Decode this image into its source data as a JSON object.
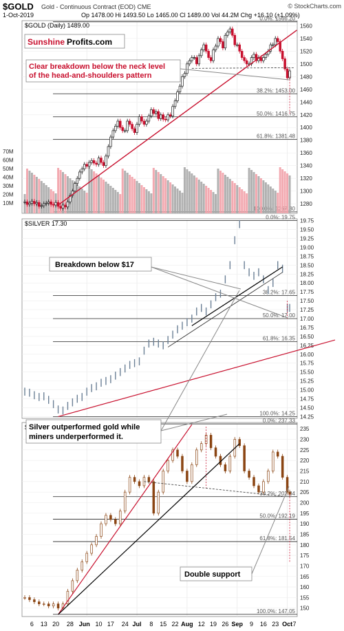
{
  "header": {
    "symbol": "$GOLD",
    "description": "Gold - Continuous Contract (EOD) CME",
    "watermark": "© StockCharts.com",
    "date": "1-Oct-2019",
    "ohlc": "Op 1478.00  Hi 1493.50  Lo 1465.00  Cl 1489.00  Vol 44.2M  Chg +16.10 (+1.09%)"
  },
  "brand": {
    "part1": "Sunshine",
    "part2": "Profits.com"
  },
  "annotations": {
    "gold": "Clear breakdown below the neck level\nof the head-and-shoulders pattern",
    "silver": "Breakdown below $17",
    "hui": "Silver outperformed gold while\nminers underperformed it.",
    "support": "Double support"
  },
  "x_axis": {
    "labels": [
      "6",
      "13",
      "20",
      "28",
      "Jun",
      "10",
      "17",
      "24",
      "Jul",
      "8",
      "15",
      "22",
      "Aug",
      "12",
      "19",
      "26",
      "Sep",
      "9",
      "16",
      "23",
      "Oct",
      "7"
    ]
  },
  "chart_data": [
    {
      "type": "candlestick",
      "title": "$GOLD (Daily) 1489.00",
      "y_ticks": [
        1280,
        1300,
        1320,
        1340,
        1360,
        1380,
        1400,
        1420,
        1440,
        1460,
        1480,
        1500,
        1520,
        1540,
        1560
      ],
      "ylim": [
        1265,
        1568
      ],
      "volume_ticks": [
        "10M",
        "20M",
        "30M",
        "40M",
        "50M",
        "60M",
        "70M"
      ],
      "fib_levels": [
        {
          "label": "0.0%: 1566.20",
          "value": 1566.2
        },
        {
          "label": "38.2%: 1453.00",
          "value": 1453
        },
        {
          "label": "50.0%: 1416.75",
          "value": 1416.75
        },
        {
          "label": "61.8%: 1381.48",
          "value": 1381.48
        },
        {
          "label": "100.0%: 1267.30",
          "value": 1267.3
        }
      ],
      "close_points": [
        [
          0,
          1283
        ],
        [
          1,
          1279
        ],
        [
          2,
          1281
        ],
        [
          3,
          1284
        ],
        [
          4,
          1280
        ],
        [
          5,
          1282
        ],
        [
          6,
          1276
        ],
        [
          7,
          1277
        ],
        [
          8,
          1280
        ],
        [
          9,
          1281
        ],
        [
          10,
          1283
        ],
        [
          11,
          1279
        ],
        [
          12,
          1278
        ],
        [
          13,
          1282
        ],
        [
          14,
          1276
        ],
        [
          15,
          1273
        ],
        [
          16,
          1278
        ],
        [
          17,
          1275
        ],
        [
          18,
          1283
        ],
        [
          19,
          1293
        ],
        [
          20,
          1300
        ],
        [
          21,
          1312
        ],
        [
          22,
          1320
        ],
        [
          23,
          1330
        ],
        [
          24,
          1335
        ],
        [
          25,
          1342
        ],
        [
          26,
          1339
        ],
        [
          27,
          1345
        ],
        [
          28,
          1348
        ],
        [
          29,
          1344
        ],
        [
          30,
          1342
        ],
        [
          31,
          1352
        ],
        [
          32,
          1345
        ],
        [
          33,
          1340
        ],
        [
          34,
          1355
        ],
        [
          35,
          1370
        ],
        [
          36,
          1385
        ],
        [
          37,
          1395
        ],
        [
          38,
          1402
        ],
        [
          39,
          1410
        ],
        [
          40,
          1400
        ],
        [
          41,
          1395
        ],
        [
          42,
          1395
        ],
        [
          43,
          1410
        ],
        [
          44,
          1405
        ],
        [
          45,
          1398
        ],
        [
          46,
          1392
        ],
        [
          47,
          1405
        ],
        [
          48,
          1417
        ],
        [
          49,
          1410
        ],
        [
          50,
          1405
        ],
        [
          51,
          1410
        ],
        [
          52,
          1418
        ],
        [
          53,
          1428
        ],
        [
          54,
          1422
        ],
        [
          55,
          1425
        ],
        [
          56,
          1414
        ],
        [
          57,
          1420
        ],
        [
          58,
          1413
        ],
        [
          59,
          1412
        ],
        [
          60,
          1420
        ],
        [
          61,
          1418
        ],
        [
          62,
          1433
        ],
        [
          63,
          1442
        ],
        [
          64,
          1456
        ],
        [
          65,
          1465
        ],
        [
          66,
          1480
        ],
        [
          67,
          1485
        ],
        [
          68,
          1500
        ],
        [
          69,
          1505
        ],
        [
          70,
          1510
        ],
        [
          71,
          1510
        ],
        [
          72,
          1500
        ],
        [
          73,
          1513
        ],
        [
          74,
          1522
        ],
        [
          75,
          1530
        ],
        [
          76,
          1520
        ],
        [
          77,
          1510
        ],
        [
          78,
          1505
        ],
        [
          79,
          1522
        ],
        [
          80,
          1528
        ],
        [
          81,
          1540
        ],
        [
          82,
          1535
        ],
        [
          83,
          1525
        ],
        [
          84,
          1545
        ],
        [
          85,
          1550
        ],
        [
          86,
          1555
        ],
        [
          87,
          1545
        ],
        [
          88,
          1530
        ],
        [
          89,
          1530
        ],
        [
          90,
          1520
        ],
        [
          91,
          1510
        ],
        [
          92,
          1505
        ],
        [
          93,
          1500
        ],
        [
          94,
          1500
        ],
        [
          95,
          1510
        ],
        [
          96,
          1515
        ],
        [
          97,
          1505
        ],
        [
          98,
          1510
        ],
        [
          99,
          1505
        ],
        [
          100,
          1510
        ],
        [
          101,
          1515
        ],
        [
          102,
          1520
        ],
        [
          103,
          1530
        ],
        [
          104,
          1530
        ],
        [
          105,
          1540
        ],
        [
          106,
          1535
        ],
        [
          107,
          1520
        ],
        [
          108,
          1508
        ],
        [
          109,
          1492
        ],
        [
          110,
          1478
        ],
        [
          111,
          1489
        ]
      ],
      "neckline": [
        [
          70,
          1493
        ],
        [
          113,
          1494
        ]
      ],
      "trendline": [
        [
          14,
          1278
        ],
        [
          114,
          1553
        ]
      ]
    },
    {
      "type": "line",
      "title": "$SILVER 17.30",
      "y_ticks": [
        14.25,
        14.5,
        14.75,
        15.0,
        15.25,
        15.5,
        15.75,
        16.0,
        16.25,
        16.5,
        16.75,
        17.0,
        17.25,
        17.5,
        17.75,
        18.0,
        18.25,
        18.5,
        18.75,
        19.0,
        19.25,
        19.5,
        19.75
      ],
      "ylim": [
        14.2,
        19.8
      ],
      "fib_levels": [
        {
          "label": "0.0%: 19.75",
          "value": 19.75
        },
        {
          "label": "38.2%: 17.65",
          "value": 17.65
        },
        {
          "label": "50.0%: 17.00",
          "value": 17.0
        },
        {
          "label": "61.8%: 16.35",
          "value": 16.35
        },
        {
          "label": "100.0%: 14.25",
          "value": 14.25
        }
      ],
      "close_points": [
        [
          0,
          14.95
        ],
        [
          2,
          14.92
        ],
        [
          4,
          14.85
        ],
        [
          6,
          14.8
        ],
        [
          8,
          14.82
        ],
        [
          10,
          14.72
        ],
        [
          12,
          14.6
        ],
        [
          14,
          14.45
        ],
        [
          16,
          14.42
        ],
        [
          18,
          14.55
        ],
        [
          20,
          14.65
        ],
        [
          22,
          14.75
        ],
        [
          24,
          14.8
        ],
        [
          26,
          14.95
        ],
        [
          28,
          15.05
        ],
        [
          30,
          15.1
        ],
        [
          32,
          15.2
        ],
        [
          34,
          15.25
        ],
        [
          36,
          15.3
        ],
        [
          38,
          15.4
        ],
        [
          40,
          15.5
        ],
        [
          42,
          15.6
        ],
        [
          44,
          15.7
        ],
        [
          46,
          15.75
        ],
        [
          48,
          15.8
        ],
        [
          50,
          16.1
        ],
        [
          52,
          16.3
        ],
        [
          54,
          16.35
        ],
        [
          56,
          16.3
        ],
        [
          58,
          16.25
        ],
        [
          60,
          16.4
        ],
        [
          62,
          16.55
        ],
        [
          64,
          16.7
        ],
        [
          66,
          16.8
        ],
        [
          68,
          16.9
        ],
        [
          70,
          17.0
        ],
        [
          72,
          17.2
        ],
        [
          74,
          17.3
        ],
        [
          76,
          17.2
        ],
        [
          78,
          17.4
        ],
        [
          80,
          17.6
        ],
        [
          82,
          17.7
        ],
        [
          84,
          18.1
        ],
        [
          86,
          18.5
        ],
        [
          88,
          19.2
        ],
        [
          90,
          19.65
        ],
        [
          92,
          18.5
        ],
        [
          94,
          18.3
        ],
        [
          96,
          18.2
        ],
        [
          98,
          18.3
        ],
        [
          100,
          18.1
        ],
        [
          102,
          17.8
        ],
        [
          104,
          18.0
        ],
        [
          106,
          18.5
        ],
        [
          108,
          18.4
        ],
        [
          110,
          17.3
        ],
        [
          111,
          17.3
        ]
      ],
      "trendlines": [
        {
          "from": [
            70,
            16.8
          ],
          "to": [
            108,
            18.45
          ],
          "color": "#000000"
        },
        {
          "from": [
            14,
            14.25
          ],
          "to": [
            130,
            16.4
          ],
          "color": "#c8102e"
        }
      ],
      "ma_line": [
        [
          60,
          16.2
        ],
        [
          108,
          18.3
        ]
      ]
    },
    {
      "type": "candlestick",
      "title": "$HUI 204.29",
      "y_ticks": [
        150,
        155,
        160,
        165,
        170,
        175,
        180,
        185,
        190,
        195,
        200,
        205,
        210,
        215,
        220,
        225,
        230,
        235
      ],
      "ylim": [
        146,
        238
      ],
      "fib_levels": [
        {
          "label": "0.0%: 237.33",
          "value": 237.33
        },
        {
          "label": "38.2%: 202.84",
          "value": 202.84
        },
        {
          "label": "50.0%: 192.19",
          "value": 192.19
        },
        {
          "label": "61.8%: 181.54",
          "value": 181.54
        },
        {
          "label": "100.0%: 147.05",
          "value": 147.05
        }
      ],
      "close_points": [
        [
          0,
          155
        ],
        [
          2,
          154
        ],
        [
          4,
          153
        ],
        [
          6,
          152
        ],
        [
          8,
          152
        ],
        [
          10,
          151
        ],
        [
          12,
          152
        ],
        [
          14,
          150
        ],
        [
          16,
          152
        ],
        [
          18,
          158
        ],
        [
          20,
          163
        ],
        [
          22,
          168
        ],
        [
          24,
          172
        ],
        [
          26,
          176
        ],
        [
          28,
          180
        ],
        [
          30,
          184
        ],
        [
          32,
          190
        ],
        [
          34,
          194
        ],
        [
          36,
          192
        ],
        [
          38,
          190
        ],
        [
          40,
          196
        ],
        [
          42,
          205
        ],
        [
          44,
          212
        ],
        [
          46,
          210
        ],
        [
          48,
          208
        ],
        [
          50,
          212
        ],
        [
          52,
          210
        ],
        [
          54,
          195
        ],
        [
          56,
          205
        ],
        [
          58,
          215
        ],
        [
          60,
          220
        ],
        [
          62,
          225
        ],
        [
          64,
          222
        ],
        [
          66,
          215
        ],
        [
          68,
          210
        ],
        [
          70,
          218
        ],
        [
          72,
          225
        ],
        [
          74,
          228
        ],
        [
          76,
          232
        ],
        [
          78,
          226
        ],
        [
          80,
          222
        ],
        [
          82,
          218
        ],
        [
          84,
          215
        ],
        [
          86,
          222
        ],
        [
          88,
          230
        ],
        [
          90,
          227
        ],
        [
          92,
          215
        ],
        [
          94,
          212
        ],
        [
          96,
          208
        ],
        [
          98,
          205
        ],
        [
          100,
          210
        ],
        [
          102,
          215
        ],
        [
          104,
          224
        ],
        [
          106,
          222
        ],
        [
          108,
          212
        ],
        [
          110,
          205
        ],
        [
          111,
          204
        ]
      ],
      "trendlines": [
        {
          "from": [
            14,
            147
          ],
          "to": [
            70,
            237
          ],
          "color": "#c8102e"
        },
        {
          "from": [
            14,
            147
          ],
          "to": [
            90,
            228
          ],
          "color": "#000000"
        }
      ],
      "neckline": [
        [
          50,
          210
        ],
        [
          108,
          203
        ]
      ]
    }
  ]
}
